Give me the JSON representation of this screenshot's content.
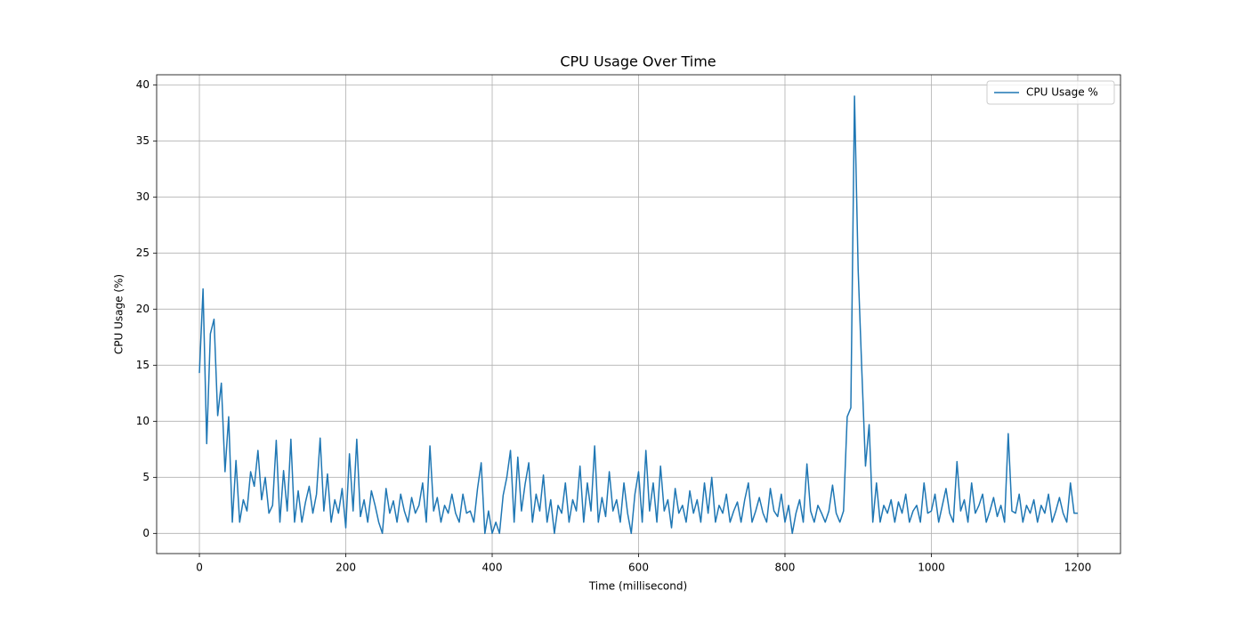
{
  "chart_data": {
    "type": "line",
    "title": "CPU Usage Over Time",
    "xlabel": "Time (millisecond)",
    "ylabel": "CPU Usage (%)",
    "x": [
      0,
      5,
      10,
      15,
      20,
      25,
      30,
      35,
      40,
      45,
      50,
      55,
      60,
      65,
      70,
      75,
      80,
      85,
      90,
      95,
      100,
      105,
      110,
      115,
      120,
      125,
      130,
      135,
      140,
      145,
      150,
      155,
      160,
      165,
      170,
      175,
      180,
      185,
      190,
      195,
      200,
      205,
      210,
      215,
      220,
      225,
      230,
      235,
      240,
      245,
      250,
      255,
      260,
      265,
      270,
      275,
      280,
      285,
      290,
      295,
      300,
      305,
      310,
      315,
      320,
      325,
      330,
      335,
      340,
      345,
      350,
      355,
      360,
      365,
      370,
      375,
      380,
      385,
      390,
      395,
      400,
      405,
      410,
      415,
      420,
      425,
      430,
      435,
      440,
      445,
      450,
      455,
      460,
      465,
      470,
      475,
      480,
      485,
      490,
      495,
      500,
      505,
      510,
      515,
      520,
      525,
      530,
      535,
      540,
      545,
      550,
      555,
      560,
      565,
      570,
      575,
      580,
      585,
      590,
      595,
      600,
      605,
      610,
      615,
      620,
      625,
      630,
      635,
      640,
      645,
      650,
      655,
      660,
      665,
      670,
      675,
      680,
      685,
      690,
      695,
      700,
      705,
      710,
      715,
      720,
      725,
      730,
      735,
      740,
      745,
      750,
      755,
      760,
      765,
      770,
      775,
      780,
      785,
      790,
      795,
      800,
      805,
      810,
      815,
      820,
      825,
      830,
      835,
      840,
      845,
      850,
      855,
      860,
      865,
      870,
      875,
      880,
      885,
      890,
      895,
      900,
      905,
      910,
      915,
      920,
      925,
      930,
      935,
      940,
      945,
      950,
      955,
      960,
      965,
      970,
      975,
      980,
      985,
      990,
      995,
      1000,
      1005,
      1010,
      1015,
      1020,
      1025,
      1030,
      1035,
      1040,
      1045,
      1050,
      1055,
      1060,
      1065,
      1070,
      1075,
      1080,
      1085,
      1090,
      1095,
      1100,
      1105,
      1110,
      1115,
      1120,
      1125,
      1130,
      1135,
      1140,
      1145,
      1150,
      1155,
      1160,
      1165,
      1170,
      1175,
      1180,
      1185,
      1190,
      1195,
      1200
    ],
    "series": [
      {
        "name": "CPU Usage %",
        "color": "#1f77b4",
        "values": [
          14.3,
          21.8,
          8.0,
          17.8,
          19.1,
          10.5,
          13.4,
          5.5,
          10.4,
          1.0,
          6.5,
          1.0,
          3.0,
          2.0,
          5.5,
          4.2,
          7.4,
          3.0,
          5.0,
          1.8,
          2.5,
          8.3,
          1.0,
          5.6,
          2.0,
          8.4,
          1.0,
          3.8,
          1.0,
          2.8,
          4.2,
          1.8,
          3.5,
          8.5,
          2.0,
          5.3,
          1.0,
          3.0,
          1.8,
          4.0,
          0.5,
          7.1,
          2.0,
          8.4,
          1.5,
          3.0,
          1.0,
          3.8,
          2.5,
          1.0,
          0.0,
          4.0,
          1.8,
          2.9,
          1.0,
          3.5,
          2.0,
          1.0,
          3.2,
          1.8,
          2.5,
          4.5,
          1.0,
          7.8,
          2.0,
          3.2,
          1.0,
          2.5,
          1.8,
          3.5,
          1.8,
          1.0,
          3.5,
          1.8,
          2.0,
          1.0,
          4.0,
          6.3,
          0.0,
          2.0,
          0.0,
          1.0,
          0.0,
          3.4,
          5.0,
          7.4,
          1.0,
          6.8,
          2.0,
          4.4,
          6.3,
          1.0,
          3.5,
          2.0,
          5.2,
          1.0,
          3.0,
          0.0,
          2.5,
          1.8,
          4.5,
          1.0,
          3.0,
          2.0,
          6.0,
          1.0,
          4.5,
          2.0,
          7.8,
          1.0,
          3.2,
          1.5,
          5.5,
          2.0,
          3.0,
          1.0,
          4.5,
          1.8,
          0.0,
          3.5,
          5.5,
          1.0,
          7.4,
          2.0,
          4.5,
          1.0,
          6.0,
          2.0,
          3.0,
          0.5,
          4.0,
          1.8,
          2.5,
          1.0,
          3.8,
          1.8,
          3.0,
          1.0,
          4.5,
          1.8,
          5.0,
          1.0,
          2.5,
          1.8,
          3.5,
          1.0,
          2.0,
          2.8,
          1.0,
          3.0,
          4.5,
          1.0,
          2.0,
          3.2,
          1.8,
          1.0,
          4.0,
          2.0,
          1.5,
          3.5,
          1.0,
          2.5,
          0.0,
          1.8,
          3.0,
          1.0,
          6.2,
          2.0,
          1.0,
          2.5,
          1.8,
          1.0,
          2.0,
          4.3,
          1.8,
          1.0,
          2.0,
          10.4,
          11.2,
          39.0,
          23.5,
          14.5,
          6.0,
          9.7,
          1.0,
          4.5,
          1.0,
          2.5,
          1.8,
          3.0,
          1.0,
          2.8,
          1.8,
          3.5,
          1.0,
          2.0,
          2.5,
          1.0,
          4.5,
          1.8,
          2.0,
          3.5,
          1.0,
          2.5,
          4.0,
          1.8,
          1.0,
          6.4,
          2.0,
          3.0,
          1.0,
          4.5,
          1.8,
          2.5,
          3.5,
          1.0,
          2.0,
          3.2,
          1.5,
          2.5,
          1.0,
          8.9,
          2.0,
          1.8,
          3.5,
          1.0,
          2.5,
          1.8,
          3.0,
          1.0,
          2.5,
          1.8,
          3.5,
          1.0,
          2.0,
          3.2,
          1.8,
          1.0,
          4.5,
          1.8,
          1.8
        ]
      }
    ],
    "xlim": [
      -58.4,
      1258.4
    ],
    "ylim": [
      -1.8,
      40.9
    ],
    "xticks": [
      0,
      200,
      400,
      600,
      800,
      1000,
      1200
    ],
    "yticks": [
      0,
      5,
      10,
      15,
      20,
      25,
      30,
      35,
      40
    ],
    "grid": true,
    "legend": "upper right"
  }
}
